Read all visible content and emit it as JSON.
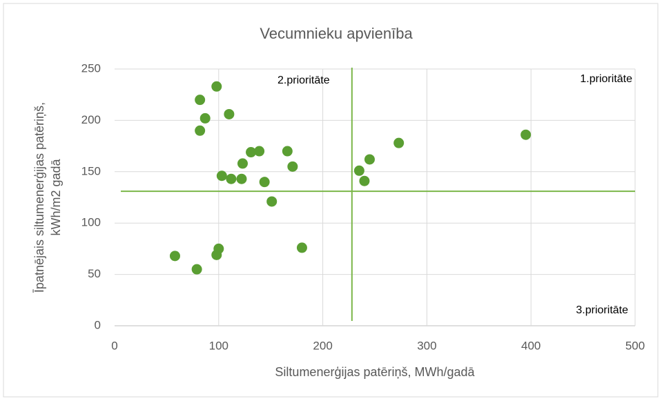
{
  "chart_data": {
    "type": "scatter",
    "title": "Vecumnieku apvienība",
    "xlabel": "Siltumenerģijas patēriņš, MWh/gadā",
    "ylabel": [
      "Īpatnējais siltumenerģijas patēriņš,",
      "kWh/m2 gadā"
    ],
    "x": [
      58,
      79,
      82,
      82,
      87,
      98,
      98,
      100,
      103,
      110,
      112,
      122,
      123,
      131,
      139,
      144,
      151,
      166,
      171,
      180,
      235,
      240,
      245,
      273,
      395
    ],
    "series": [
      {
        "name": "Vecumnieku apvienība",
        "color": "#5a9e32",
        "values": [
          68,
          55,
          220,
          190,
          202,
          233,
          69,
          75,
          146,
          206,
          143,
          143,
          158,
          169,
          170,
          140,
          121,
          170,
          155,
          76,
          151,
          141,
          162,
          178,
          186
        ]
      }
    ],
    "xlim": [
      0,
      500
    ],
    "xticks": [
      0,
      100,
      200,
      300,
      400,
      500
    ],
    "ylim": [
      0,
      250
    ],
    "yticks": [
      0,
      50,
      100,
      150,
      200,
      250
    ],
    "grid": true,
    "reference_lines": {
      "x": 228,
      "y": 131,
      "color": "#7ab648"
    },
    "annotations": [
      "2.prioritāte",
      "1.prioritāte",
      "3.prioritāte"
    ]
  }
}
